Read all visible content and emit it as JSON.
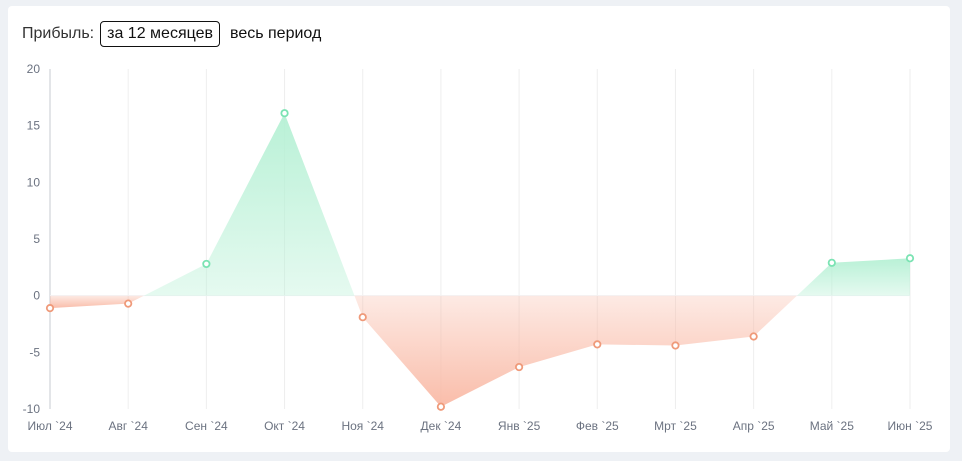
{
  "header": {
    "title": "Прибыль:",
    "period_active": "за 12 месяцев",
    "period_other": "весь период"
  },
  "colors": {
    "positive_line": "#7be3b3",
    "positive_fill": "#b5f0d4",
    "negative_line": "#ef9a7a",
    "negative_fill": "#f9b9a5",
    "grid": "#eeeeee",
    "axis": "#c7cbd1",
    "tick_text": "#6b7280"
  },
  "chart_data": {
    "type": "area",
    "categories": [
      "Июл `24",
      "Авг `24",
      "Сен `24",
      "Окт `24",
      "Ноя `24",
      "Дек `24",
      "Янв `25",
      "Фев `25",
      "Мрт `25",
      "Апр `25",
      "Май `25",
      "Июн `25"
    ],
    "values": [
      -1.1,
      -0.7,
      2.8,
      16.1,
      -1.9,
      -9.8,
      -6.3,
      -4.3,
      -4.4,
      -3.6,
      2.9,
      3.3
    ],
    "ylim": [
      -10,
      20
    ],
    "yticks": [
      -10,
      -5,
      0,
      5,
      10,
      15,
      20
    ],
    "grid": "vertical",
    "positive_color": "green",
    "negative_color": "red"
  }
}
